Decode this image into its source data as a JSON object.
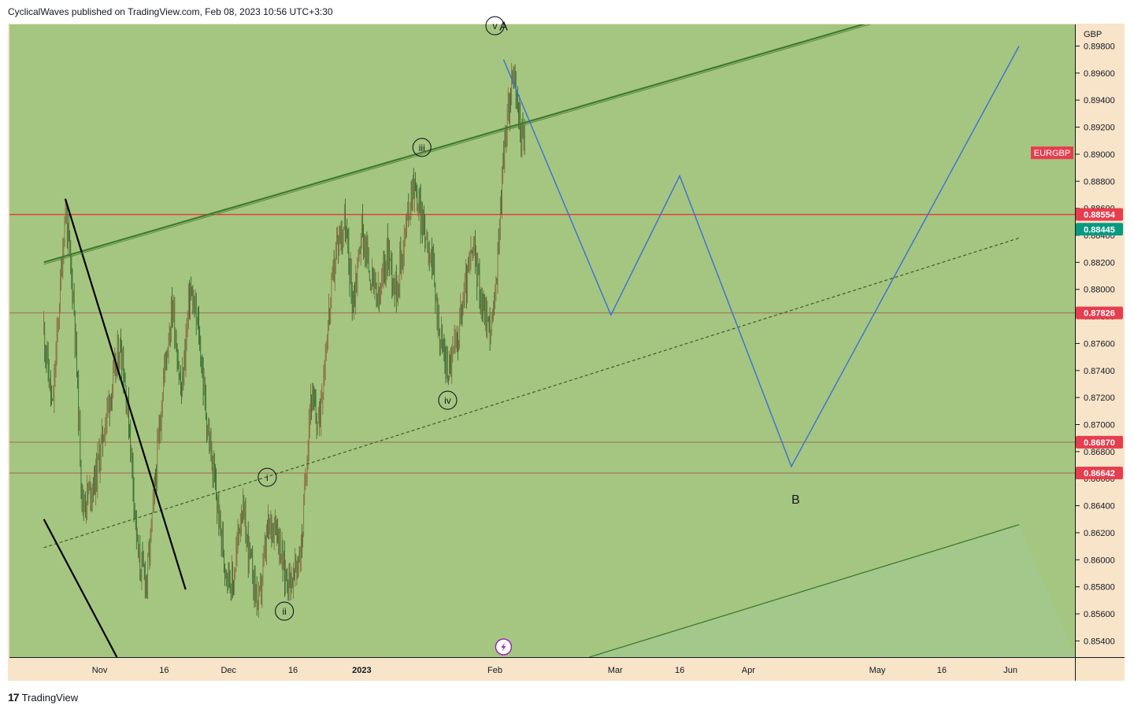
{
  "header": {
    "published_text": "CyclicalWaves published on TradingView.com, Feb 08, 2023 10:56 UTC+3:30"
  },
  "footer": {
    "brand": "TradingView",
    "logo_icon": "tradingview-logo-icon"
  },
  "colors": {
    "pane_bg": "#a5c680",
    "axis_bg": "#f8e4c8",
    "candle_up": "#8a6a40",
    "candle_down": "#2f6a2f",
    "resistance_line": "#e53935",
    "support_line": "#a08060",
    "projection": "#3b6fd8",
    "channel": "#3f7a2e",
    "price_label_red": "#e53e4f",
    "price_label_teal": "#089981"
  },
  "chart_data": {
    "type": "candlestick",
    "symbol": "EURGBP",
    "currency": "GBP",
    "ylim": [
      0.8528,
      0.8996
    ],
    "y_ticks": [
      "0.89800",
      "0.89600",
      "0.89400",
      "0.89200",
      "0.89000",
      "0.88800",
      "0.88600",
      "0.88400",
      "0.88200",
      "0.88000",
      "0.87800",
      "0.87600",
      "0.87400",
      "0.87200",
      "0.87000",
      "0.86800",
      "0.86600",
      "0.86400",
      "0.86200",
      "0.86000",
      "0.85800",
      "0.85600",
      "0.85400"
    ],
    "x_ticks": [
      {
        "label": "Nov",
        "date": "2022-11-01"
      },
      {
        "label": "16",
        "date": "2022-11-16"
      },
      {
        "label": "Dec",
        "date": "2022-12-01"
      },
      {
        "label": "16",
        "date": "2022-12-16"
      },
      {
        "label": "2023",
        "date": "2023-01-01"
      },
      {
        "label": "Feb",
        "date": "2023-02-01"
      },
      {
        "label": "Mar",
        "date": "2023-03-01"
      },
      {
        "label": "16",
        "date": "2023-03-16"
      },
      {
        "label": "Apr",
        "date": "2023-04-01"
      },
      {
        "label": "May",
        "date": "2023-05-01"
      },
      {
        "label": "16",
        "date": "2023-05-16"
      },
      {
        "label": "Jun",
        "date": "2023-06-01"
      }
    ],
    "price_path": [
      [
        "2022-10-19",
        0.877
      ],
      [
        "2022-10-21",
        0.871
      ],
      [
        "2022-10-23",
        0.881
      ],
      [
        "2022-10-24",
        0.886
      ],
      [
        "2022-10-26",
        0.879
      ],
      [
        "2022-10-28",
        0.864
      ],
      [
        "2022-10-31",
        0.866
      ],
      [
        "2022-11-03",
        0.8715
      ],
      [
        "2022-11-06",
        0.876
      ],
      [
        "2022-11-08",
        0.8695
      ],
      [
        "2022-11-10",
        0.86
      ],
      [
        "2022-11-12",
        0.8585
      ],
      [
        "2022-11-14",
        0.866
      ],
      [
        "2022-11-16",
        0.874
      ],
      [
        "2022-11-18",
        0.879
      ],
      [
        "2022-11-20",
        0.872
      ],
      [
        "2022-11-22",
        0.88
      ],
      [
        "2022-11-24",
        0.877
      ],
      [
        "2022-11-26",
        0.87
      ],
      [
        "2022-11-28",
        0.865
      ],
      [
        "2022-11-30",
        0.86
      ],
      [
        "2022-12-02",
        0.858
      ],
      [
        "2022-12-04",
        0.864
      ],
      [
        "2022-12-06",
        0.86
      ],
      [
        "2022-12-08",
        0.8565
      ],
      [
        "2022-12-10",
        0.862
      ],
      [
        "2022-12-12",
        0.863
      ],
      [
        "2022-12-14",
        0.859
      ],
      [
        "2022-12-16",
        0.8585
      ],
      [
        "2022-12-18",
        0.861
      ],
      [
        "2022-12-20",
        0.872
      ],
      [
        "2022-12-22",
        0.87
      ],
      [
        "2022-12-24",
        0.877
      ],
      [
        "2022-12-26",
        0.883
      ],
      [
        "2022-12-28",
        0.885
      ],
      [
        "2022-12-30",
        0.879
      ],
      [
        "2023-01-01",
        0.8845
      ],
      [
        "2023-01-03",
        0.881
      ],
      [
        "2023-01-05",
        0.879
      ],
      [
        "2023-01-07",
        0.883
      ],
      [
        "2023-01-09",
        0.88
      ],
      [
        "2023-01-11",
        0.884
      ],
      [
        "2023-01-13",
        0.888
      ],
      [
        "2023-01-15",
        0.885
      ],
      [
        "2023-01-17",
        0.883
      ],
      [
        "2023-01-19",
        0.877
      ],
      [
        "2023-01-21",
        0.874
      ],
      [
        "2023-01-23",
        0.876
      ],
      [
        "2023-01-25",
        0.88
      ],
      [
        "2023-01-27",
        0.883
      ],
      [
        "2023-01-29",
        0.879
      ],
      [
        "2023-01-31",
        0.877
      ],
      [
        "2023-02-01",
        0.879
      ],
      [
        "2023-02-03",
        0.89
      ],
      [
        "2023-02-05",
        0.896
      ],
      [
        "2023-02-06",
        0.894
      ],
      [
        "2023-02-07",
        0.892
      ],
      [
        "2023-02-08",
        0.8905
      ]
    ],
    "horizontal_levels": [
      {
        "price": 0.88554,
        "label": "0.88554",
        "color": "#e53935",
        "label_color": "#e53e4f"
      },
      {
        "price": 0.87826,
        "label": "0.87826",
        "color": "#a08060",
        "label_color": "#e53e4f"
      },
      {
        "price": 0.8687,
        "label": "0.86870",
        "color": "#a08060",
        "label_color": "#e53e4f"
      },
      {
        "price": 0.86642,
        "label": "0.86642",
        "color": "#a08060",
        "label_color": "#e53e4f"
      }
    ],
    "last_price": {
      "price": 0.88445,
      "label": "0.88445"
    },
    "symbol_tag": {
      "price": 0.8901,
      "label": "EURGBP"
    },
    "wave_labels": [
      {
        "text": "v",
        "date": "2023-02-01",
        "price": 0.8995,
        "circled": true
      },
      {
        "text": "A",
        "date": "2023-02-03",
        "price": 0.8995,
        "circled": false
      },
      {
        "text": "iii",
        "date": "2023-01-15",
        "price": 0.8905,
        "circled": true
      },
      {
        "text": "iv",
        "date": "2023-01-21",
        "price": 0.8718,
        "circled": true
      },
      {
        "text": "i",
        "date": "2022-12-10",
        "price": 0.8661,
        "circled": true
      },
      {
        "text": "ii",
        "date": "2022-12-14",
        "price": 0.8562,
        "circled": true
      },
      {
        "text": "B",
        "date": "2023-04-12",
        "price": 0.8645,
        "circled": false
      }
    ],
    "projection_path": [
      [
        "2023-02-03",
        0.897
      ],
      [
        "2023-02-28",
        0.8781
      ],
      [
        "2023-03-16",
        0.8884
      ],
      [
        "2023-04-11",
        0.8669
      ],
      [
        "2023-06-03",
        0.898
      ]
    ],
    "trend_lines": [
      {
        "from": [
          "2022-10-19",
          0.882
        ],
        "to": [
          "2023-05-02",
          0.9
        ],
        "color": "#3f7a2e",
        "width": 2.2,
        "dash": ""
      },
      {
        "from": [
          "2022-10-19",
          0.8609
        ],
        "to": [
          "2023-06-03",
          0.8838
        ],
        "color": "#3a5a2a",
        "width": 1.2,
        "dash": "4,3"
      },
      {
        "from": [
          "2023-02-23",
          0.8528
        ],
        "to": [
          "2023-06-03",
          0.8626
        ],
        "color": "#3f7a2e",
        "width": 1.3,
        "dash": ""
      },
      {
        "from": [
          "2022-10-24",
          0.8867
        ],
        "to": [
          "2022-11-21",
          0.8578
        ],
        "color": "#000000",
        "width": 2.2,
        "dash": ""
      },
      {
        "from": [
          "2022-10-19",
          0.863
        ],
        "to": [
          "2022-11-05",
          0.8528
        ],
        "color": "#000000",
        "width": 2.2,
        "dash": ""
      }
    ],
    "events": [
      {
        "date": "2023-02-03",
        "icon": "lightning-icon"
      }
    ],
    "grid": false
  }
}
